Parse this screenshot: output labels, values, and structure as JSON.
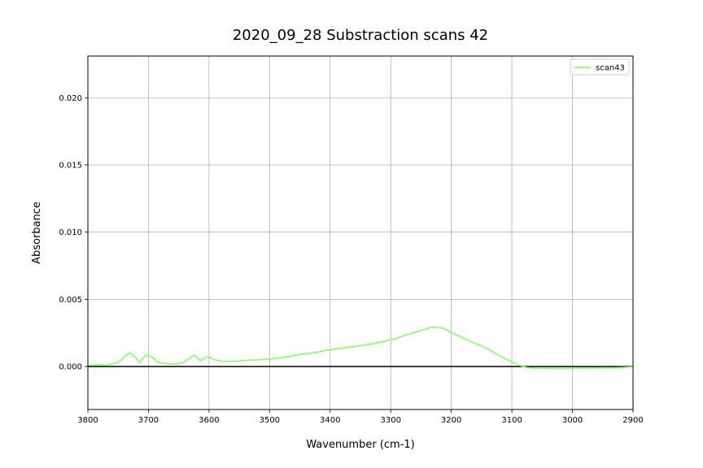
{
  "chart_data": {
    "type": "line",
    "title": "2020_09_28 Substraction scans 42",
    "xlabel": "Wavenumber (cm-1)",
    "ylabel": "Absorbance",
    "xlim": [
      3800,
      2900
    ],
    "ylim": [
      -0.0032,
      0.0231
    ],
    "x_reversed": true,
    "grid": true,
    "legend_position": "top-right",
    "x_ticks": [
      3800,
      3700,
      3600,
      3500,
      3400,
      3300,
      3200,
      3100,
      3000,
      2900
    ],
    "x_tick_labels": [
      "3800",
      "3700",
      "3600",
      "3500",
      "3400",
      "3300",
      "3200",
      "3100",
      "3000",
      "2900"
    ],
    "y_ticks": [
      0.0,
      0.005,
      0.01,
      0.015,
      0.02
    ],
    "y_tick_labels": [
      "0.000",
      "0.005",
      "0.010",
      "0.015",
      "0.020"
    ],
    "baseline": {
      "y": 0.0,
      "color": "#000000"
    },
    "series": [
      {
        "name": "scan43",
        "color": "#80ff66",
        "x": [
          3800,
          3790,
          3780,
          3770,
          3760,
          3750,
          3745,
          3740,
          3735,
          3730,
          3725,
          3720,
          3715,
          3710,
          3705,
          3700,
          3695,
          3690,
          3685,
          3680,
          3670,
          3660,
          3650,
          3645,
          3640,
          3635,
          3630,
          3625,
          3620,
          3615,
          3610,
          3605,
          3600,
          3595,
          3590,
          3580,
          3570,
          3560,
          3550,
          3540,
          3530,
          3520,
          3510,
          3500,
          3490,
          3480,
          3470,
          3460,
          3450,
          3440,
          3430,
          3420,
          3410,
          3400,
          3390,
          3380,
          3370,
          3360,
          3350,
          3340,
          3330,
          3320,
          3310,
          3300,
          3290,
          3280,
          3270,
          3260,
          3250,
          3240,
          3235,
          3230,
          3225,
          3220,
          3215,
          3210,
          3200,
          3190,
          3180,
          3170,
          3160,
          3150,
          3140,
          3130,
          3120,
          3110,
          3100,
          3090,
          3080,
          3075,
          3070,
          3060,
          3050,
          3040,
          3030,
          3020,
          3010,
          3000,
          2990,
          2980,
          2970,
          2960,
          2950,
          2940,
          2930,
          2920,
          2910,
          2900
        ],
        "values": [
          8e-05,
          0.0001,
          0.00013,
          0.00012,
          0.00018,
          0.0003,
          0.0005,
          0.0007,
          0.00092,
          0.001,
          0.00085,
          0.0006,
          0.0003,
          0.00055,
          0.0008,
          0.00082,
          0.0007,
          0.00055,
          0.00035,
          0.00025,
          0.0002,
          0.00018,
          0.0002,
          0.00028,
          0.00038,
          0.0005,
          0.00068,
          0.00085,
          0.0007,
          0.00042,
          0.00055,
          0.0007,
          0.00072,
          0.0006,
          0.00048,
          0.0004,
          0.00038,
          0.0004,
          0.0004,
          0.00045,
          0.00048,
          0.0005,
          0.00052,
          0.00055,
          0.0006,
          0.00065,
          0.00072,
          0.0008,
          0.0009,
          0.00095,
          0.001,
          0.00108,
          0.00118,
          0.00125,
          0.0013,
          0.00138,
          0.00142,
          0.0015,
          0.00155,
          0.00162,
          0.0017,
          0.00178,
          0.00188,
          0.002,
          0.0021,
          0.00228,
          0.0024,
          0.00255,
          0.00268,
          0.0028,
          0.0029,
          0.00295,
          0.00292,
          0.0029,
          0.00285,
          0.00278,
          0.00255,
          0.00232,
          0.0021,
          0.0019,
          0.0017,
          0.00152,
          0.0013,
          0.00105,
          0.0008,
          0.00055,
          0.00035,
          0.00012,
          -2e-05,
          -8e-05,
          -0.0001,
          -0.00012,
          -0.00013,
          -0.00013,
          -0.00014,
          -0.00015,
          -0.00014,
          -0.00013,
          -0.00012,
          -0.00012,
          -0.00012,
          -0.00011,
          -0.0001,
          -0.0001,
          -0.0001,
          -8e-05,
          -5e-05,
          -3e-05
        ]
      }
    ]
  }
}
